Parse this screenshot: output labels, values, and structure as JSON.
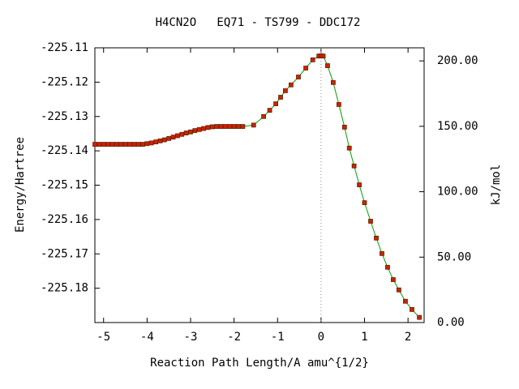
{
  "chart_data": {
    "type": "line",
    "title": "H4CN2O   EQ71 - TS799 - DDC172",
    "xlabel": "Reaction Path Length/A amu^{1/2}",
    "ylabel": "Energy/Hartree",
    "y2label": "kJ/mol",
    "xlim": [
      -5.2,
      2.37
    ],
    "ylim": [
      -225.19,
      -225.11
    ],
    "y2lim": [
      0,
      210
    ],
    "xticks": [
      -5,
      -4,
      -3,
      -2,
      -1,
      0,
      1,
      2
    ],
    "yticks": [
      -225.11,
      -225.12,
      -225.13,
      -225.14,
      -225.15,
      -225.16,
      -225.17,
      -225.18
    ],
    "y2ticks": [
      {
        "value": 0,
        "label": "0.00"
      },
      {
        "value": 50,
        "label": "50.00"
      },
      {
        "value": 100,
        "label": "100.00"
      },
      {
        "value": 150,
        "label": "150.00"
      },
      {
        "value": 200,
        "label": "200.00"
      }
    ],
    "vline_x": 0,
    "line_color": "#00a000",
    "marker_color": "#cc2200",
    "x": [
      -5.2,
      -5.1,
      -5.0,
      -4.9,
      -4.8,
      -4.7,
      -4.6,
      -4.5,
      -4.4,
      -4.3,
      -4.2,
      -4.1,
      -4.0,
      -3.9,
      -3.8,
      -3.7,
      -3.6,
      -3.5,
      -3.4,
      -3.3,
      -3.2,
      -3.1,
      -3.0,
      -2.9,
      -2.8,
      -2.7,
      -2.6,
      -2.5,
      -2.4,
      -2.3,
      -2.2,
      -2.1,
      -2.0,
      -1.9,
      -1.8,
      -1.55,
      -1.32,
      -1.18,
      -1.04,
      -0.93,
      -0.82,
      -0.69,
      -0.52,
      -0.35,
      -0.19,
      -0.05,
      0.0,
      0.05,
      0.15,
      0.28,
      0.41,
      0.54,
      0.65,
      0.76,
      0.88,
      1.0,
      1.14,
      1.27,
      1.4,
      1.53,
      1.66,
      1.79,
      1.94,
      2.09,
      2.26
    ],
    "values": [
      -225.1381,
      -225.1381,
      -225.1381,
      -225.1381,
      -225.1381,
      -225.1381,
      -225.1381,
      -225.1381,
      -225.1381,
      -225.1381,
      -225.1381,
      -225.1381,
      -225.1379,
      -225.1377,
      -225.1374,
      -225.1371,
      -225.1368,
      -225.1364,
      -225.136,
      -225.1356,
      -225.1352,
      -225.1348,
      -225.1345,
      -225.1341,
      -225.1338,
      -225.1335,
      -225.1332,
      -225.133,
      -225.1329,
      -225.1329,
      -225.1329,
      -225.1329,
      -225.1329,
      -225.1329,
      -225.1329,
      -225.1325,
      -225.13,
      -225.1282,
      -225.1263,
      -225.1244,
      -225.1225,
      -225.1208,
      -225.1185,
      -225.1159,
      -225.1135,
      -225.1124,
      -225.1123,
      -225.1124,
      -225.1152,
      -225.1201,
      -225.1265,
      -225.1331,
      -225.1392,
      -225.1444,
      -225.1499,
      -225.1551,
      -225.1605,
      -225.1654,
      -225.1699,
      -225.1739,
      -225.1775,
      -225.1805,
      -225.1838,
      -225.1862,
      -225.1885
    ]
  }
}
